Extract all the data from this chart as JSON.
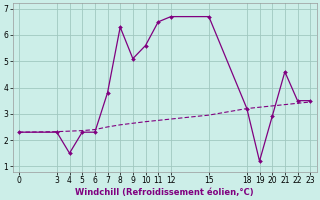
{
  "xlabel": "Windchill (Refroidissement éolien,°C)",
  "bg_color": "#cceee8",
  "line_color": "#800080",
  "grid_color": "#a0c8c0",
  "series1_x": [
    0,
    3,
    4,
    5,
    6,
    7,
    8,
    9,
    10,
    11,
    12,
    15,
    18,
    19,
    20,
    21,
    22,
    23
  ],
  "series1_y": [
    2.3,
    2.3,
    1.5,
    2.3,
    2.3,
    3.8,
    6.3,
    5.1,
    5.6,
    6.5,
    6.7,
    6.7,
    3.2,
    1.2,
    2.9,
    4.6,
    3.5,
    3.5
  ],
  "series2_x": [
    0,
    3,
    4,
    5,
    6,
    7,
    8,
    9,
    10,
    11,
    12,
    15,
    18,
    19,
    20,
    21,
    22,
    23
  ],
  "series2_y": [
    2.3,
    2.32,
    2.34,
    2.36,
    2.4,
    2.5,
    2.58,
    2.64,
    2.7,
    2.75,
    2.8,
    2.95,
    3.2,
    3.25,
    3.3,
    3.35,
    3.4,
    3.45
  ],
  "xlim": [
    -0.5,
    23.5
  ],
  "ylim": [
    0.8,
    7.2
  ],
  "xticks": [
    0,
    3,
    4,
    5,
    6,
    7,
    8,
    9,
    10,
    11,
    12,
    15,
    18,
    19,
    20,
    21,
    22,
    23
  ],
  "yticks": [
    1,
    2,
    3,
    4,
    5,
    6,
    7
  ],
  "tick_fontsize": 5.5,
  "label_fontsize": 6.0
}
